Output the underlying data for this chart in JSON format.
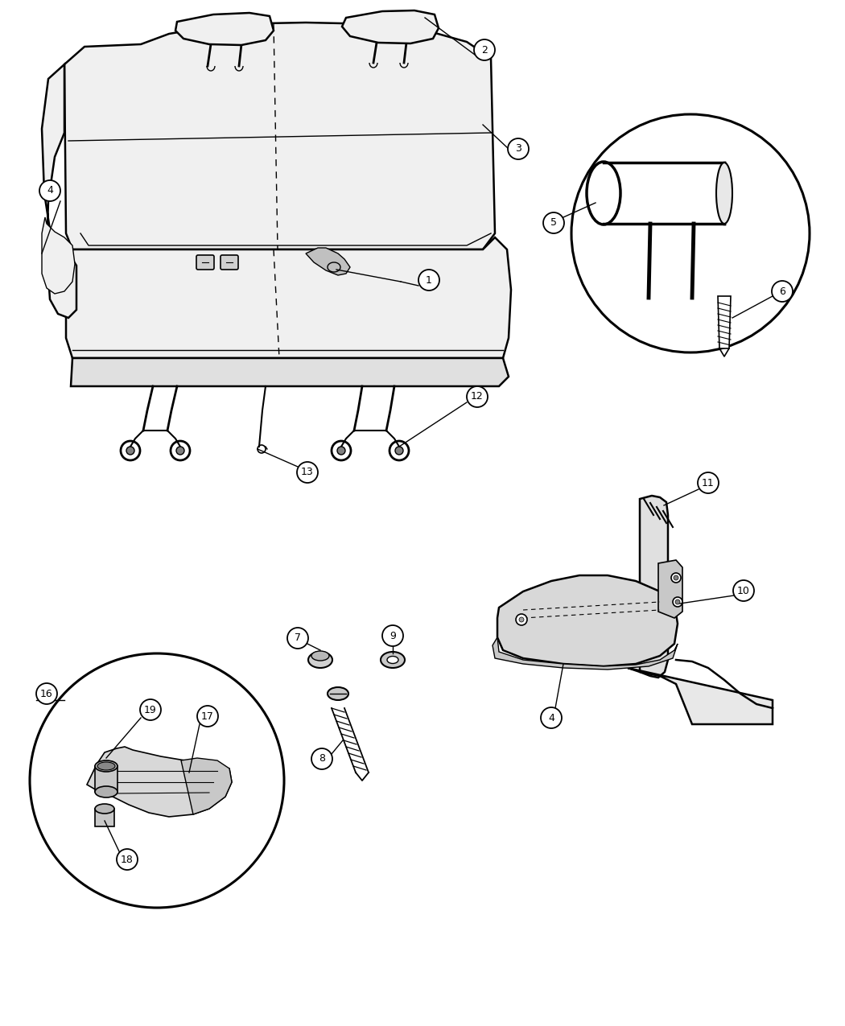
{
  "background_color": "#ffffff",
  "line_color": "#000000",
  "figsize": [
    10.5,
    12.75
  ],
  "dpi": 100,
  "seat_fill": "#f0f0f0",
  "dark_fill": "#c8c8c8"
}
